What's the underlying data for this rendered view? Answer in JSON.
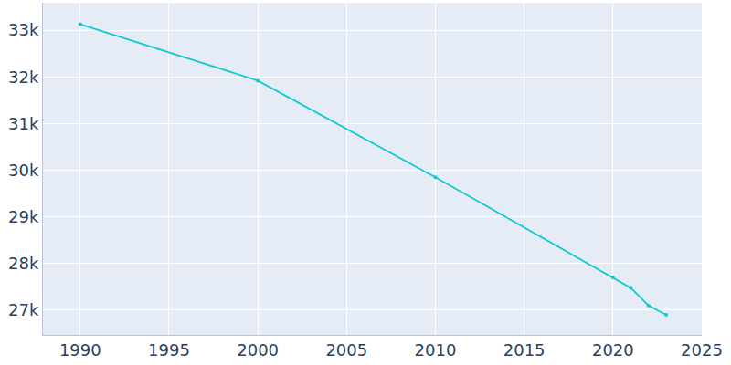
{
  "chart_data": {
    "type": "line",
    "x": [
      1990,
      2000,
      2010,
      2020,
      2021,
      2022,
      2023
    ],
    "values": [
      33130,
      31920,
      29850,
      27700,
      27480,
      27100,
      26900
    ],
    "color": "#12c9cc",
    "marker": "circle",
    "grid": true,
    "xlim": [
      1987.9,
      2025
    ],
    "xticks": [
      1990,
      1995,
      2000,
      2005,
      2010,
      2015,
      2020,
      2025
    ],
    "ylim": [
      26470,
      33590
    ],
    "yticks": [
      {
        "value": 27000,
        "label": "27k"
      },
      {
        "value": 28000,
        "label": "28k"
      },
      {
        "value": 29000,
        "label": "29k"
      },
      {
        "value": 30000,
        "label": "30k"
      },
      {
        "value": 31000,
        "label": "31k"
      },
      {
        "value": 32000,
        "label": "32k"
      },
      {
        "value": 33000,
        "label": "33k"
      }
    ]
  }
}
